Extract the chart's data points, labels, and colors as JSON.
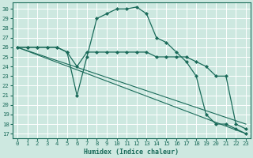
{
  "xlabel": "Humidex (Indice chaleur)",
  "background_color": "#cde8e0",
  "grid_color": "#ffffff",
  "line_color": "#1a6b5a",
  "xlim": [
    -0.5,
    23.5
  ],
  "ylim": [
    16.5,
    30.7
  ],
  "xticks": [
    0,
    1,
    2,
    3,
    4,
    5,
    6,
    7,
    8,
    9,
    10,
    11,
    12,
    13,
    14,
    15,
    16,
    17,
    18,
    19,
    20,
    21,
    22,
    23
  ],
  "yticks": [
    17,
    18,
    19,
    20,
    21,
    22,
    23,
    24,
    25,
    26,
    27,
    28,
    29,
    30
  ],
  "series": [
    {
      "x": [
        0,
        1,
        2,
        3,
        4,
        5,
        6,
        7,
        8,
        9,
        10,
        11,
        12,
        13,
        14,
        15,
        16,
        17,
        18,
        19,
        20,
        21,
        22,
        23
      ],
      "y": [
        26,
        26,
        26,
        26,
        26,
        25.5,
        21,
        25,
        29,
        29.5,
        30,
        30,
        30.2,
        29.5,
        27,
        26.5,
        25.5,
        24.5,
        23,
        19,
        18,
        18,
        17.5,
        17
      ]
    },
    {
      "x": [
        0,
        1,
        2,
        3,
        4,
        5,
        6,
        7,
        8,
        9,
        10,
        11,
        12,
        13,
        14,
        15,
        16,
        17,
        18,
        19,
        20,
        21,
        22,
        23
      ],
      "y": [
        26,
        26,
        26,
        26,
        26,
        25.5,
        24,
        25.5,
        25.5,
        25.5,
        25.5,
        25.5,
        25.5,
        25.5,
        25,
        25,
        25,
        25,
        24.5,
        24,
        23,
        23,
        18,
        17.5
      ]
    },
    {
      "x": [
        0,
        23
      ],
      "y": [
        26,
        17
      ]
    },
    {
      "x": [
        0,
        23
      ],
      "y": [
        26,
        18
      ]
    }
  ]
}
